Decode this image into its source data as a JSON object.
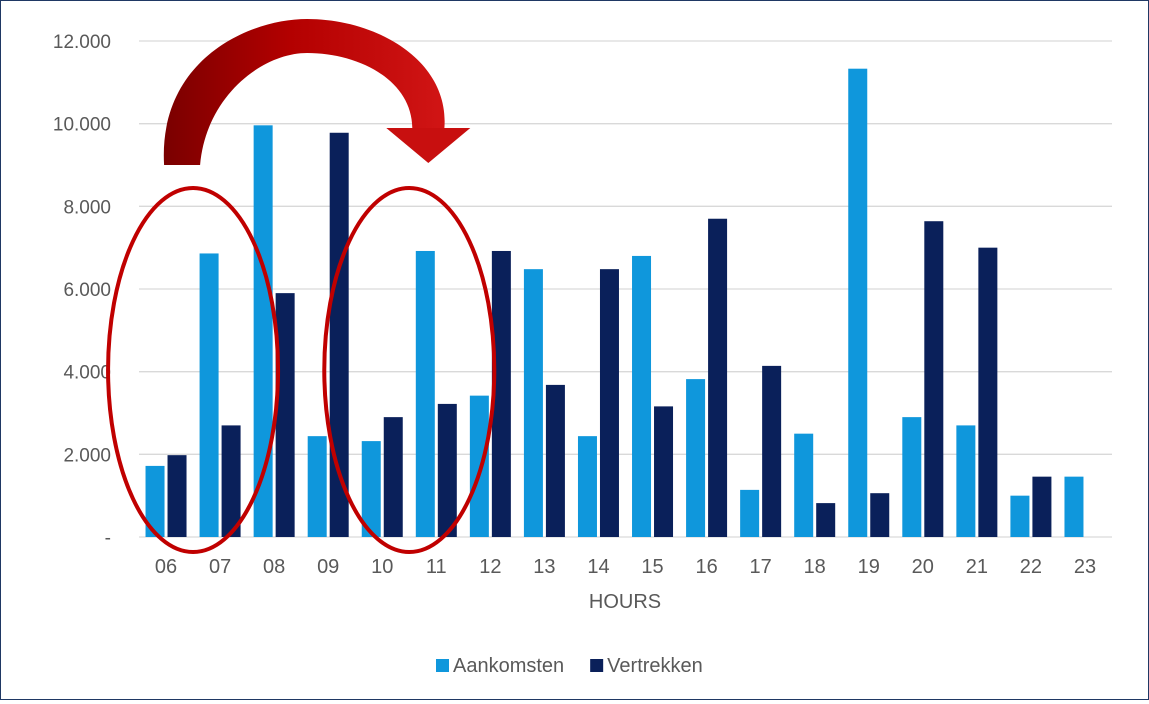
{
  "chart_data": {
    "type": "bar",
    "title": "",
    "xlabel": "HOURS",
    "ylabel": "",
    "ylim": [
      0,
      12000
    ],
    "ytick_values": [
      0,
      2000,
      4000,
      6000,
      8000,
      10000,
      12000
    ],
    "ytick_labels": [
      "-",
      "2.000",
      "4.000",
      "6.000",
      "8.000",
      "10.000",
      "12.000"
    ],
    "grid": "horizontal",
    "legend": "bottom-center",
    "categories": [
      "06",
      "07",
      "08",
      "09",
      "10",
      "11",
      "12",
      "13",
      "14",
      "15",
      "16",
      "17",
      "18",
      "19",
      "20",
      "21",
      "22",
      "23"
    ],
    "series": [
      {
        "name": "Aankomsten",
        "color": "#0f97dc",
        "values": [
          1720,
          6860,
          9960,
          2440,
          2320,
          6920,
          3420,
          6480,
          2440,
          6800,
          3820,
          1140,
          2500,
          11330,
          2900,
          2700,
          1000,
          1460
        ]
      },
      {
        "name": "Vertrekken",
        "color": "#0a205a",
        "values": [
          1980,
          2700,
          5900,
          9780,
          2900,
          3220,
          6920,
          3680,
          6480,
          3160,
          7700,
          4140,
          820,
          1060,
          7640,
          7000,
          1460,
          0
        ]
      }
    ],
    "annotations": [
      {
        "type": "ellipse",
        "color": "#c00000",
        "covers": [
          "06",
          "07"
        ]
      },
      {
        "type": "ellipse",
        "color": "#c00000",
        "covers": [
          "10",
          "11"
        ]
      },
      {
        "type": "curved-arrow",
        "color": "#a00000",
        "from": "07",
        "to": "11"
      }
    ]
  }
}
